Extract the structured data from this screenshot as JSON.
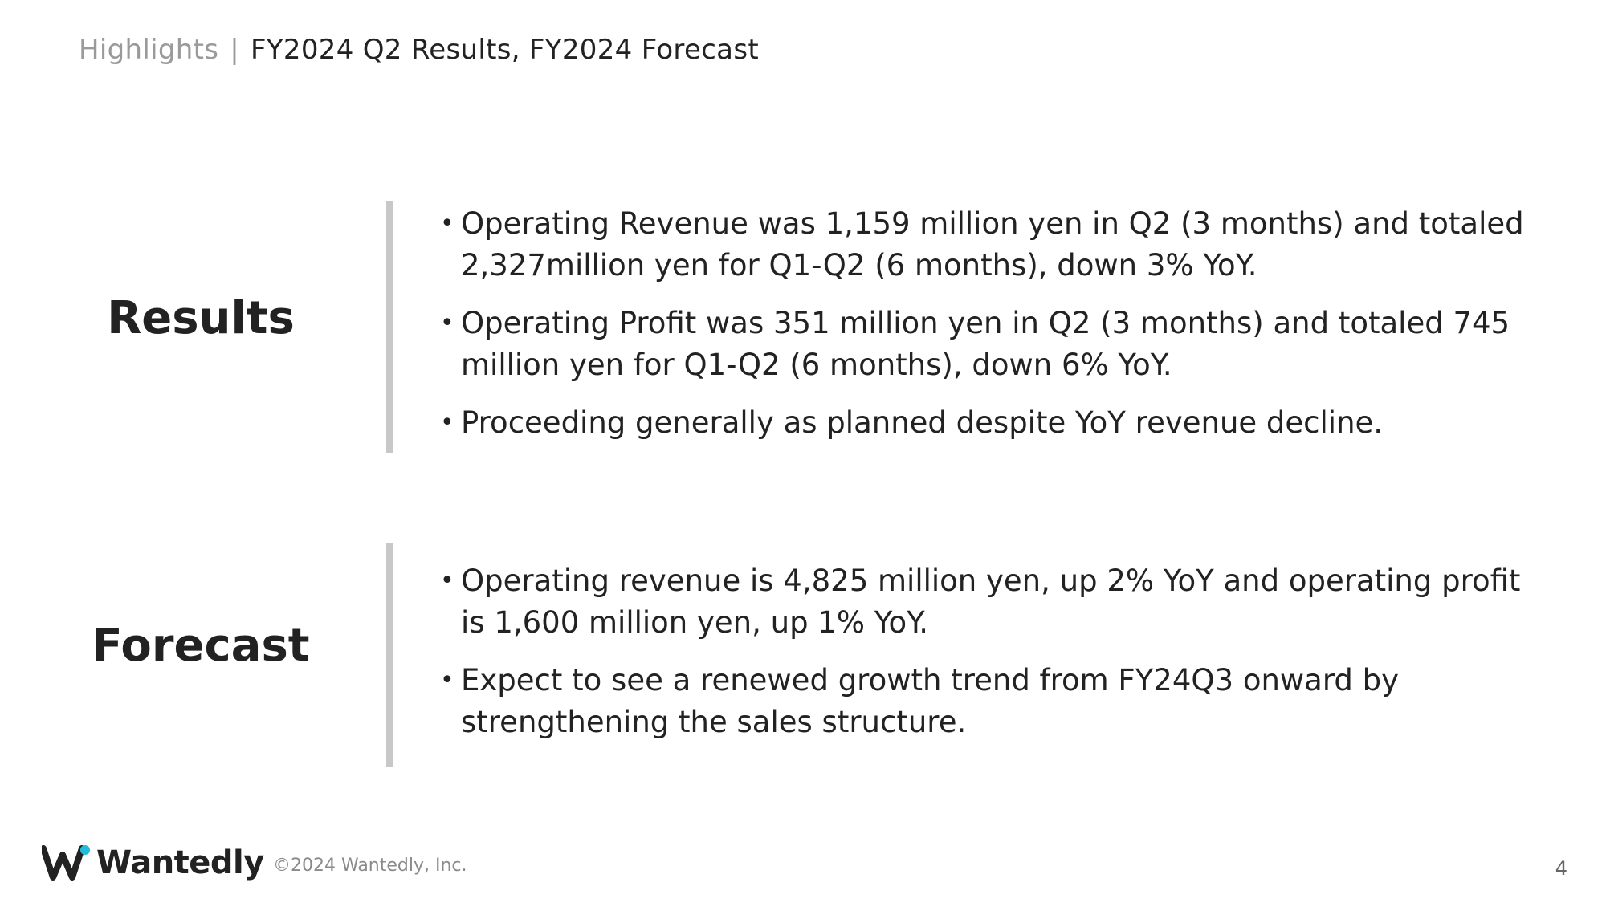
{
  "header": {
    "section": "Highlights",
    "separator": "|",
    "title": "FY2024 Q2 Results, FY2024 Forecast"
  },
  "results": {
    "heading": "Results",
    "bullets": [
      "Operating Revenue was 1,159 million yen in Q2 (3 months) and totaled 2,327million yen for Q1-Q2 (6 months), down 3% YoY.",
      "Operating Profit was 351 million yen in Q2 (3 months) and totaled 745 million yen for Q1-Q2 (6 months), down 6% YoY.",
      "Proceeding generally as planned despite YoY revenue decline."
    ]
  },
  "forecast": {
    "heading": "Forecast",
    "bullets": [
      "Operating revenue is 4,825 million yen, up 2% YoY and operating profit is 1,600 million yen, up 1% YoY.",
      "Expect to see a renewed growth trend from FY24Q3 onward by strengthening the sales structure."
    ]
  },
  "footer": {
    "logo_text": "Wantedly",
    "copyright": "©2024 Wantedly, Inc.",
    "page_number": "4"
  },
  "colors": {
    "text": "#222222",
    "muted": "#9a9a9a",
    "divider": "#c8c8c8",
    "logo_accent": "#21bddb"
  }
}
